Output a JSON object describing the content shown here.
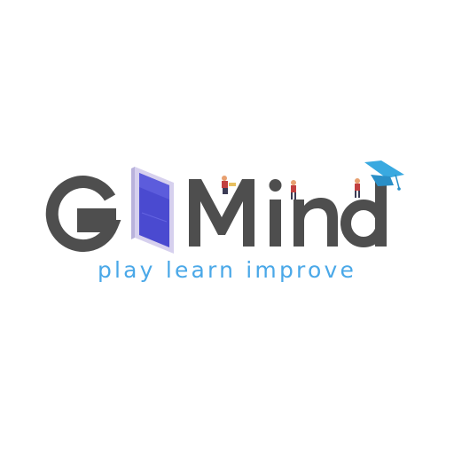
{
  "logo": {
    "wordmark": "G Mind",
    "tagline": "play learn improve",
    "icons": [
      "phone-icon",
      "graduation-cap-icon",
      "person-figure-icon"
    ]
  },
  "colors": {
    "wordmark": "#4e4e4e",
    "tagline": "#4aa8e8",
    "phone_body": "#4a4ad0",
    "phone_frame": "#c6c0e6",
    "cap": "#39a9e0",
    "background": "#ffffff"
  }
}
